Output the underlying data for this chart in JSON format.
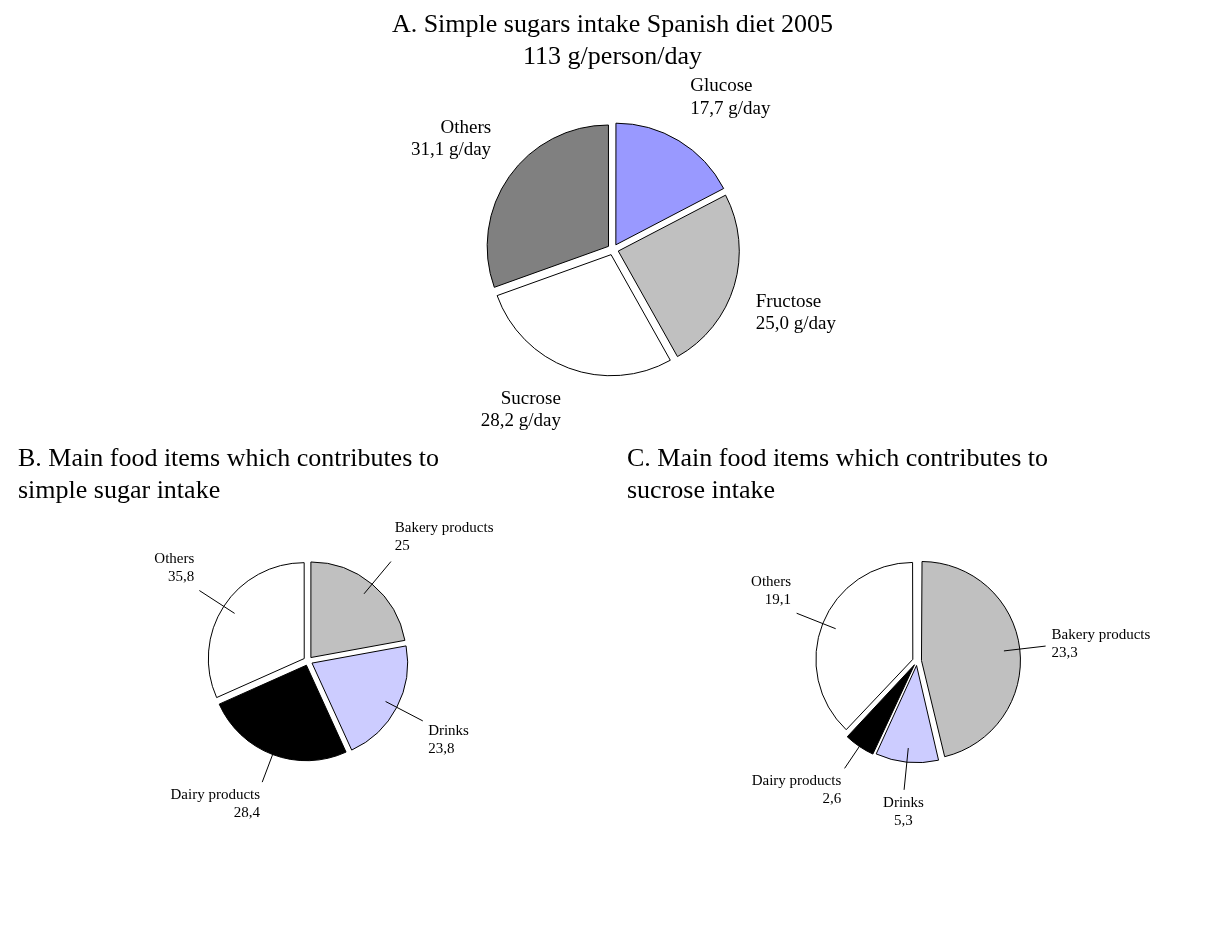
{
  "chart_data": [
    {
      "type": "pie",
      "title": "A.  Simple sugars intake Spanish diet 2005",
      "subtitle": "113 g/person/day",
      "categories": [
        "Glucose",
        "Fructose",
        "Sucrose",
        "Others"
      ],
      "values": [
        17.7,
        25.0,
        28.2,
        31.1
      ],
      "value_labels": [
        "17,7 g/day",
        "25,0 g/day",
        "28,2 g/day",
        "31,1 g/day"
      ],
      "colors": [
        "#9999ff",
        "#c0c0c0",
        "#ffffff",
        "#808080"
      ],
      "legend": false
    },
    {
      "type": "pie",
      "title": "B. Main food items which contributes to simple sugar intake",
      "categories": [
        "Bakery products",
        "Drinks",
        "Dairy products",
        "Others"
      ],
      "values": [
        25,
        23.8,
        28.4,
        35.8
      ],
      "value_labels": [
        "25",
        "23,8",
        "28,4",
        "35,8"
      ],
      "colors": [
        "#c0c0c0",
        "#ccccff",
        "#000000",
        "#ffffff"
      ],
      "legend": false
    },
    {
      "type": "pie",
      "title": "C. Main food items which contributes to sucrose intake",
      "categories": [
        "Bakery products",
        "Drinks",
        "Dairy products",
        "Others"
      ],
      "values": [
        23.3,
        5.3,
        2.6,
        19.1
      ],
      "value_labels": [
        "23,3",
        "5,3",
        "2,6",
        "19,1"
      ],
      "colors": [
        "#c0c0c0",
        "#ccccff",
        "#000000",
        "#ffffff"
      ],
      "legend": false
    }
  ]
}
